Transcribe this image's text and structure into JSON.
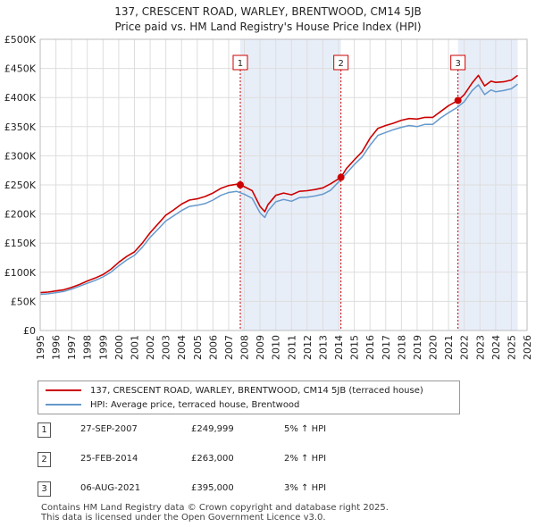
{
  "header": {
    "line1": "137, CRESCENT ROAD, WARLEY, BRENTWOOD, CM14 5JB",
    "line2": "Price paid vs. HM Land Registry's House Price Index (HPI)"
  },
  "colors": {
    "property": "#cc0000",
    "hpi": "#6699cc",
    "shade": "#e8eef8",
    "grid": "#dddddd",
    "marker": "#cc0000"
  },
  "chart_data": {
    "type": "line",
    "xlim": [
      1995,
      2026
    ],
    "ylim": [
      0,
      500000
    ],
    "y_ticks": [
      {
        "value": 0,
        "label": "£0"
      },
      {
        "value": 50000,
        "label": "£50K"
      },
      {
        "value": 100000,
        "label": "£100K"
      },
      {
        "value": 150000,
        "label": "£150K"
      },
      {
        "value": 200000,
        "label": "£200K"
      },
      {
        "value": 250000,
        "label": "£250K"
      },
      {
        "value": 300000,
        "label": "£300K"
      },
      {
        "value": 350000,
        "label": "£350K"
      },
      {
        "value": 400000,
        "label": "£400K"
      },
      {
        "value": 450000,
        "label": "£450K"
      },
      {
        "value": 500000,
        "label": "£500K"
      }
    ],
    "x_ticks": [
      "1995",
      "1996",
      "1997",
      "1998",
      "1999",
      "2000",
      "2001",
      "2002",
      "2003",
      "2004",
      "2005",
      "2006",
      "2007",
      "2008",
      "2009",
      "2010",
      "2011",
      "2012",
      "2013",
      "2014",
      "2015",
      "2016",
      "2017",
      "2018",
      "2019",
      "2020",
      "2021",
      "2022",
      "2023",
      "2024",
      "2025",
      "2026"
    ],
    "shaded_regions": [
      [
        2007.74,
        2014.15
      ],
      [
        2021.6,
        2025.4
      ]
    ],
    "series": [
      {
        "name": "137, CRESCENT ROAD, WARLEY, BRENTWOOD, CM14 5JB (terraced house)",
        "x": [
          1995,
          1995.5,
          1996,
          1996.5,
          1997,
          1997.5,
          1998,
          1998.5,
          1999,
          1999.5,
          2000,
          2000.5,
          2001,
          2001.5,
          2002,
          2002.5,
          2003,
          2003.5,
          2004,
          2004.5,
          2005,
          2005.5,
          2006,
          2006.5,
          2007,
          2007.5,
          2007.74,
          2008,
          2008.5,
          2009,
          2009.3,
          2009.5,
          2010,
          2010.5,
          2011,
          2011.5,
          2012,
          2012.5,
          2013,
          2013.5,
          2014.15,
          2014.5,
          2015,
          2015.5,
          2016,
          2016.5,
          2017,
          2017.5,
          2018,
          2018.5,
          2019,
          2019.5,
          2020,
          2020.5,
          2021,
          2021.6,
          2022,
          2022.5,
          2022.9,
          2023.3,
          2023.7,
          2024,
          2024.5,
          2025,
          2025.4
        ],
        "y": [
          65000,
          66000,
          68000,
          70000,
          74000,
          79000,
          85000,
          90000,
          96000,
          105000,
          117000,
          127000,
          135000,
          150000,
          168000,
          183000,
          198000,
          207000,
          217000,
          224000,
          226000,
          230000,
          236000,
          244000,
          249000,
          251000,
          249999,
          247000,
          240000,
          213000,
          204000,
          216000,
          232000,
          236000,
          233000,
          239000,
          240000,
          242000,
          245000,
          252000,
          263000,
          278000,
          293000,
          307000,
          330000,
          347000,
          352000,
          356000,
          361000,
          364000,
          363000,
          366000,
          366000,
          376000,
          386000,
          395000,
          405000,
          425000,
          438000,
          420000,
          428000,
          426000,
          427000,
          430000,
          438000
        ]
      },
      {
        "name": "HPI: Average price, terraced house, Brentwood",
        "x": [
          1995,
          1995.5,
          1996,
          1996.5,
          1997,
          1997.5,
          1998,
          1998.5,
          1999,
          1999.5,
          2000,
          2000.5,
          2001,
          2001.5,
          2002,
          2002.5,
          2003,
          2003.5,
          2004,
          2004.5,
          2005,
          2005.5,
          2006,
          2006.5,
          2007,
          2007.5,
          2008,
          2008.5,
          2009,
          2009.3,
          2009.5,
          2010,
          2010.5,
          2011,
          2011.5,
          2012,
          2012.5,
          2013,
          2013.5,
          2014,
          2014.5,
          2015,
          2015.5,
          2016,
          2016.5,
          2017,
          2017.5,
          2018,
          2018.5,
          2019,
          2019.5,
          2020,
          2020.5,
          2021,
          2021.5,
          2022,
          2022.5,
          2022.9,
          2023.3,
          2023.7,
          2024,
          2024.5,
          2025,
          2025.4
        ],
        "y": [
          62000,
          63000,
          65000,
          67000,
          71000,
          76000,
          81000,
          86000,
          92000,
          100000,
          111000,
          121000,
          129000,
          143000,
          160000,
          174000,
          188000,
          197000,
          206000,
          213000,
          215000,
          218000,
          224000,
          232000,
          237000,
          239000,
          234000,
          227000,
          202000,
          194000,
          205000,
          221000,
          225000,
          222000,
          228000,
          229000,
          231000,
          234000,
          241000,
          255000,
          270000,
          285000,
          298000,
          318000,
          335000,
          340000,
          345000,
          349000,
          352000,
          350000,
          354000,
          354000,
          365000,
          374000,
          382000,
          393000,
          412000,
          422000,
          405000,
          413000,
          410000,
          412000,
          415000,
          423000
        ]
      }
    ],
    "markers": [
      {
        "label": "1",
        "x": 2007.74,
        "y": 249999
      },
      {
        "label": "2",
        "x": 2014.15,
        "y": 263000
      },
      {
        "label": "3",
        "x": 2021.6,
        "y": 395000
      }
    ]
  },
  "legend": {
    "property_label": "137, CRESCENT ROAD, WARLEY, BRENTWOOD, CM14 5JB (terraced house)",
    "hpi_label": "HPI: Average price, terraced house, Brentwood"
  },
  "sales": [
    {
      "num": "1",
      "date": "27-SEP-2007",
      "price": "£249,999",
      "hpi": "5% ↑ HPI"
    },
    {
      "num": "2",
      "date": "25-FEB-2014",
      "price": "£263,000",
      "hpi": "2% ↑ HPI"
    },
    {
      "num": "3",
      "date": "06-AUG-2021",
      "price": "£395,000",
      "hpi": "3% ↑ HPI"
    }
  ],
  "footer": {
    "line1": "Contains HM Land Registry data © Crown copyright and database right 2025.",
    "line2": "This data is licensed under the Open Government Licence v3.0."
  }
}
